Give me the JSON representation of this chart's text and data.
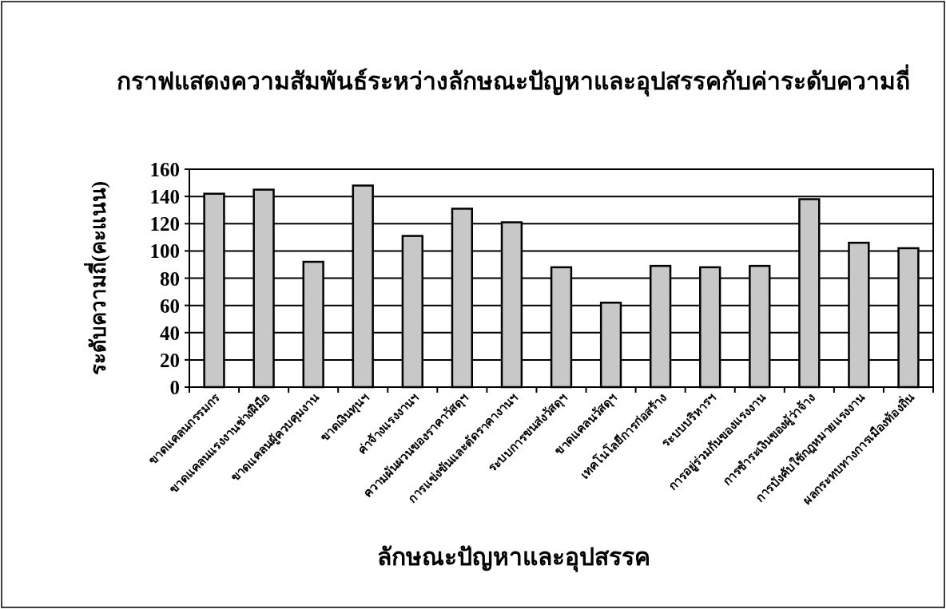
{
  "chart_data": {
    "type": "bar",
    "title": "กราฟแสดงความสัมพันธ์ระหว่างลักษณะปัญหาและอุปสรรคกับค่าระดับความถี่",
    "xlabel": "ลักษณะปัญหาและอุปสรรค",
    "ylabel": "ระดับความถี่(คะแนน)",
    "categories": [
      "ขาดแคลนกรรมกร",
      "ขาดแคลนแรงงานช่างฝีมือ",
      "ขาดแคลนผู้ควบคุมงาน",
      "ขาดเงินทุนฯ",
      "ค่าจ้างแรงงานฯ",
      "ความผันผวนของราคาวัสดุฯ",
      "การแข่งขันและตัดราคางานฯ",
      "ระบบการขนส่งวัสดุฯ",
      "ขาดแคลนวัสดุฯ",
      "เทคโนโลยีการก่อสร้าง",
      "ระบบบริหารฯ",
      "การอยู่ร่วมกันของแรงงาน",
      "การชำระเงินของผู้ว่าจ้าง",
      "การบังคับใช้กฎหมายแรงงาน",
      "ผลกระทบทางการเมืองท้องถิ่น"
    ],
    "values": [
      142,
      145,
      92,
      148,
      111,
      131,
      121,
      88,
      62,
      89,
      88,
      89,
      138,
      106,
      102
    ],
    "color": "#c8c8c8",
    "ylim": [
      0,
      160
    ],
    "yticks": [
      0,
      20,
      40,
      60,
      80,
      100,
      120,
      140,
      160
    ],
    "grid": "y"
  }
}
